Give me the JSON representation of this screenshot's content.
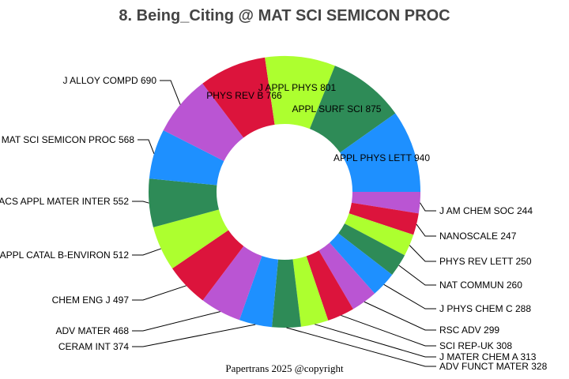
{
  "chart_data": {
    "type": "pie",
    "donut": true,
    "title": "8. Being_Citing @ MAT SCI SEMICON PROC",
    "footnote": "Papertrans 2025 @copyright",
    "slices": [
      {
        "label": "J AM CHEM SOC",
        "value": 244
      },
      {
        "label": "NANOSCALE",
        "value": 247
      },
      {
        "label": "PHYS REV LETT",
        "value": 250
      },
      {
        "label": "NAT COMMUN",
        "value": 260
      },
      {
        "label": "J PHYS CHEM C",
        "value": 288
      },
      {
        "label": "RSC ADV",
        "value": 299
      },
      {
        "label": "SCI REP-UK",
        "value": 308
      },
      {
        "label": "J MATER CHEM A",
        "value": 313
      },
      {
        "label": "ADV FUNCT MATER",
        "value": 328
      },
      {
        "label": "CERAM INT",
        "value": 374
      },
      {
        "label": "ADV MATER",
        "value": 468
      },
      {
        "label": "CHEM ENG J",
        "value": 497
      },
      {
        "label": "APPL CATAL B-ENVIRON",
        "value": 512
      },
      {
        "label": "ACS APPL MATER INTER",
        "value": 552
      },
      {
        "label": "MAT SCI SEMICON PROC",
        "value": 568
      },
      {
        "label": "J ALLOY COMPD",
        "value": 690
      },
      {
        "label": "PHYS REV B",
        "value": 766
      },
      {
        "label": "J APPL PHYS",
        "value": 801
      },
      {
        "label": "APPL SURF SCI",
        "value": 875
      },
      {
        "label": "APPL PHYS LETT",
        "value": 940
      }
    ],
    "colors": [
      "#ba55d3",
      "#dc143c",
      "#adff2f",
      "#2e8b57",
      "#1e90ff"
    ],
    "direction": "clockwise",
    "start": "east"
  }
}
